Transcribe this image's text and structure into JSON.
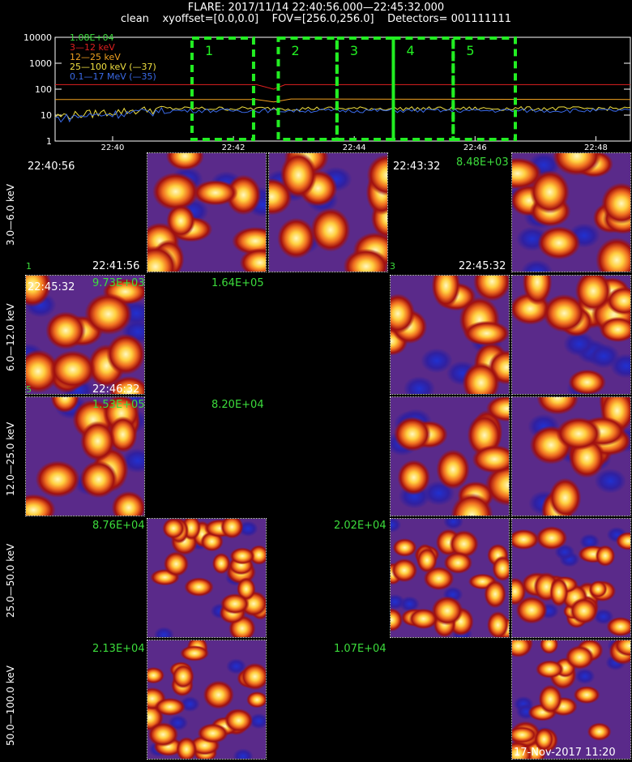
{
  "header": {
    "line1": "FLARE: 2017/11/14 22:40:56.000—22:45:32.000",
    "line2": "clean    xyoffset=[0.0,0.0]    FOV=[256.0,256.0]    Detectors= 001111111"
  },
  "colors": {
    "c3_12": "#e02020",
    "c12_25": "#f0a020",
    "c25_100": "#f0e040",
    "c01_17": "#3a6ae8",
    "white": "#ffffff",
    "box": "#22ee22",
    "label_green": "#3cdc3c"
  },
  "chart_data": {
    "type": "line",
    "title": "",
    "ylog": true,
    "ylim": [
      1,
      10000
    ],
    "y_ticks": [
      "10000",
      "1000",
      "100",
      "10",
      "1"
    ],
    "x_ticks": [
      "22:40",
      "22:42",
      "22:44",
      "22:46",
      "22:48"
    ],
    "peak_label": "1.08E+04",
    "series": [
      {
        "name": "3—12 keV",
        "color_key": "c3_12",
        "level": 150,
        "points": [
          [
            0,
            150
          ],
          [
            0.35,
            150
          ],
          [
            0.38,
            100
          ],
          [
            0.4,
            150
          ],
          [
            1,
            150
          ]
        ]
      },
      {
        "name": "12—25 keV",
        "color_key": "c12_25",
        "level": 40,
        "points": [
          [
            0,
            40
          ],
          [
            0.35,
            40
          ],
          [
            0.38,
            32
          ],
          [
            0.41,
            42
          ],
          [
            1,
            40
          ]
        ]
      },
      {
        "name": "25—100 keV (—37)",
        "color_key": "c25_100",
        "level": 18
      },
      {
        "name": "0.1—17 MeV (—35)",
        "color_key": "c01_17",
        "level": 15
      }
    ],
    "time_boxes": [
      {
        "label": "1",
        "t0": 0.238,
        "t1": 0.345
      },
      {
        "label": "2",
        "t0": 0.388,
        "t1": 0.49
      },
      {
        "label": "3",
        "t0": 0.49,
        "t1": 0.588
      },
      {
        "label": "4",
        "t0": 0.588,
        "t1": 0.692
      },
      {
        "label": "5",
        "t0": 0.692,
        "t1": 0.8
      }
    ]
  },
  "energy_bands": [
    "3.0—6.0 keV",
    "6.0—12.0 keV",
    "12.0—25.0 keV",
    "25.0—50.0 keV",
    "50.0—100.0 keV"
  ],
  "panel_labels": {
    "r0_t0": "22:40:56",
    "r0_t1": "22:41:56",
    "r0_n1": "1",
    "r0_t2": "22:43:32",
    "r0_t3": "22:45:32",
    "r0_n3": "3",
    "r0_peak": "8.48E+03",
    "r1_t0": "22:45:32",
    "r1_t1": "22:46:32",
    "r1_n5": "5",
    "r1_peak0": "9.73E+03",
    "r1_peak1": "1.64E+05",
    "r2_peak0": "1.53E+05",
    "r2_peak1": "8.20E+04",
    "r3_peak0": "8.76E+04",
    "r3_peak1": "2.02E+04",
    "r4_peak0": "2.13E+04",
    "r4_peak1": "1.07E+04"
  },
  "footer_stamp": "17-Nov-2017 11:20"
}
